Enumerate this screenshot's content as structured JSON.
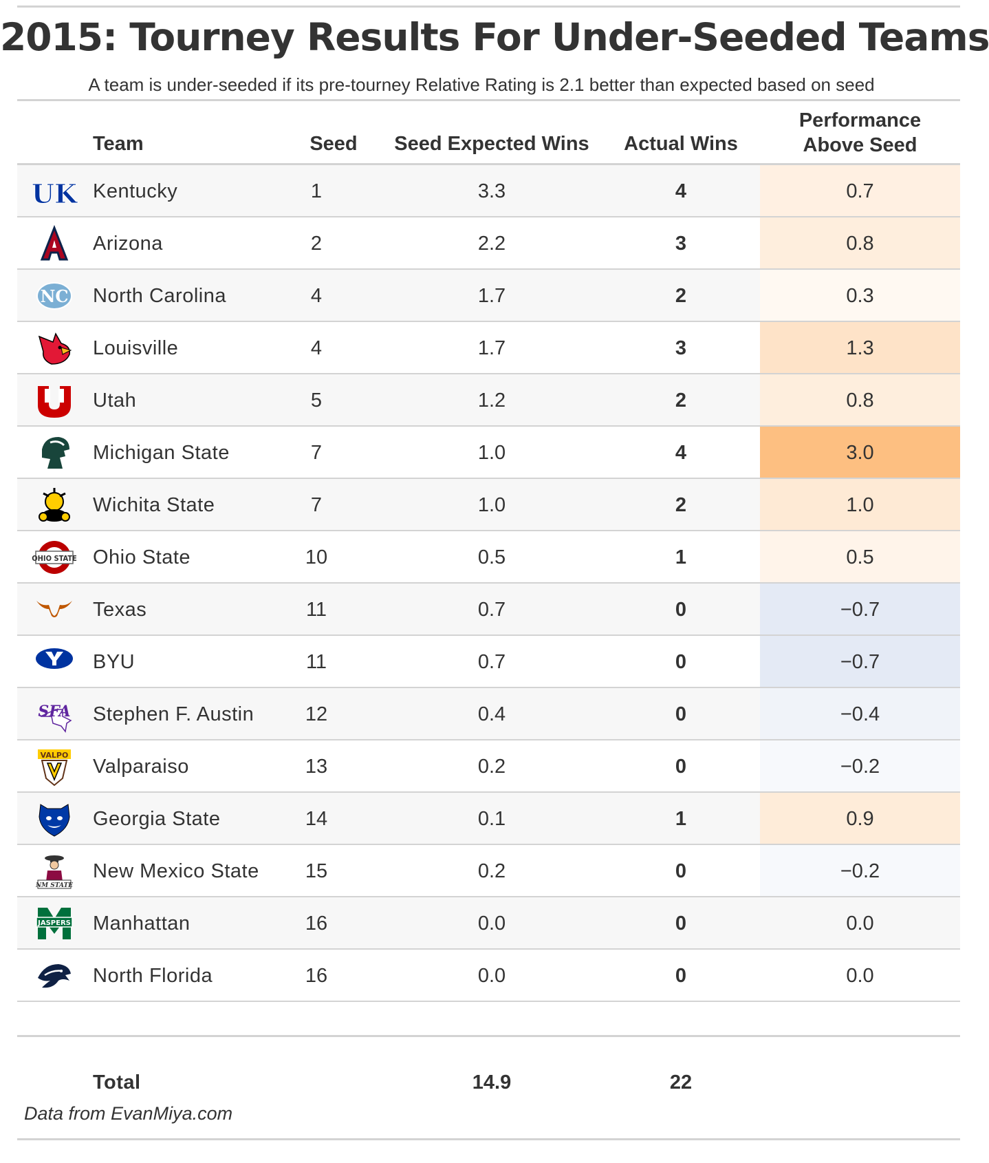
{
  "title": "2015: Tourney Results For Under-Seeded Teams",
  "subtitle": "A team is under-seeded if its pre-tourney Relative Rating is 2.1 better than expected based on seed",
  "columns": {
    "team": "Team",
    "seed": "Seed",
    "expected": "Seed Expected Wins",
    "actual": "Actual Wins",
    "performance_line1": "Performance",
    "performance_line2": "Above Seed"
  },
  "rows": [
    {
      "team": "Kentucky",
      "seed": "1",
      "expected": "3.3",
      "actual": "4",
      "performance": "0.7",
      "perf_value": 0.7,
      "logo": "kentucky-logo-icon"
    },
    {
      "team": "Arizona",
      "seed": "2",
      "expected": "2.2",
      "actual": "3",
      "performance": "0.8",
      "perf_value": 0.8,
      "logo": "arizona-logo-icon"
    },
    {
      "team": "North Carolina",
      "seed": "4",
      "expected": "1.7",
      "actual": "2",
      "performance": "0.3",
      "perf_value": 0.3,
      "logo": "north-carolina-logo-icon"
    },
    {
      "team": "Louisville",
      "seed": "4",
      "expected": "1.7",
      "actual": "3",
      "performance": "1.3",
      "perf_value": 1.3,
      "logo": "louisville-logo-icon"
    },
    {
      "team": "Utah",
      "seed": "5",
      "expected": "1.2",
      "actual": "2",
      "performance": "0.8",
      "perf_value": 0.8,
      "logo": "utah-logo-icon"
    },
    {
      "team": "Michigan State",
      "seed": "7",
      "expected": "1.0",
      "actual": "4",
      "performance": "3.0",
      "perf_value": 3.0,
      "logo": "michigan-state-logo-icon"
    },
    {
      "team": "Wichita State",
      "seed": "7",
      "expected": "1.0",
      "actual": "2",
      "performance": "1.0",
      "perf_value": 1.0,
      "logo": "wichita-state-logo-icon"
    },
    {
      "team": "Ohio State",
      "seed": "10",
      "expected": "0.5",
      "actual": "1",
      "performance": "0.5",
      "perf_value": 0.5,
      "logo": "ohio-state-logo-icon"
    },
    {
      "team": "Texas",
      "seed": "11",
      "expected": "0.7",
      "actual": "0",
      "performance": "−0.7",
      "perf_value": -0.7,
      "logo": "texas-logo-icon"
    },
    {
      "team": "BYU",
      "seed": "11",
      "expected": "0.7",
      "actual": "0",
      "performance": "−0.7",
      "perf_value": -0.7,
      "logo": "byu-logo-icon"
    },
    {
      "team": "Stephen F. Austin",
      "seed": "12",
      "expected": "0.4",
      "actual": "0",
      "performance": "−0.4",
      "perf_value": -0.4,
      "logo": "stephen-f-austin-logo-icon"
    },
    {
      "team": "Valparaiso",
      "seed": "13",
      "expected": "0.2",
      "actual": "0",
      "performance": "−0.2",
      "perf_value": -0.2,
      "logo": "valparaiso-logo-icon"
    },
    {
      "team": "Georgia State",
      "seed": "14",
      "expected": "0.1",
      "actual": "1",
      "performance": "0.9",
      "perf_value": 0.9,
      "logo": "georgia-state-logo-icon"
    },
    {
      "team": "New Mexico State",
      "seed": "15",
      "expected": "0.2",
      "actual": "0",
      "performance": "−0.2",
      "perf_value": -0.2,
      "logo": "new-mexico-state-logo-icon"
    },
    {
      "team": "Manhattan",
      "seed": "16",
      "expected": "0.0",
      "actual": "0",
      "performance": "0.0",
      "perf_value": 0.0,
      "logo": "manhattan-logo-icon"
    },
    {
      "team": "North Florida",
      "seed": "16",
      "expected": "0.0",
      "actual": "0",
      "performance": "0.0",
      "perf_value": 0.0,
      "logo": "north-florida-logo-icon"
    }
  ],
  "total": {
    "label": "Total",
    "expected": "14.9",
    "actual": "22"
  },
  "source": "Data from EvanMiya.com",
  "logo_text": {
    "ohio_state": "OHIO STATE",
    "manhattan": "JASPERS",
    "new_mexico_state": "NM STATE",
    "valparaiso": "VALPO"
  },
  "colors": {
    "positive_max": "#fdbf81",
    "negative_max": "#e4eaf5",
    "zebra": "#f7f7f7",
    "rule": "#d3d3d3",
    "text": "#333333"
  }
}
